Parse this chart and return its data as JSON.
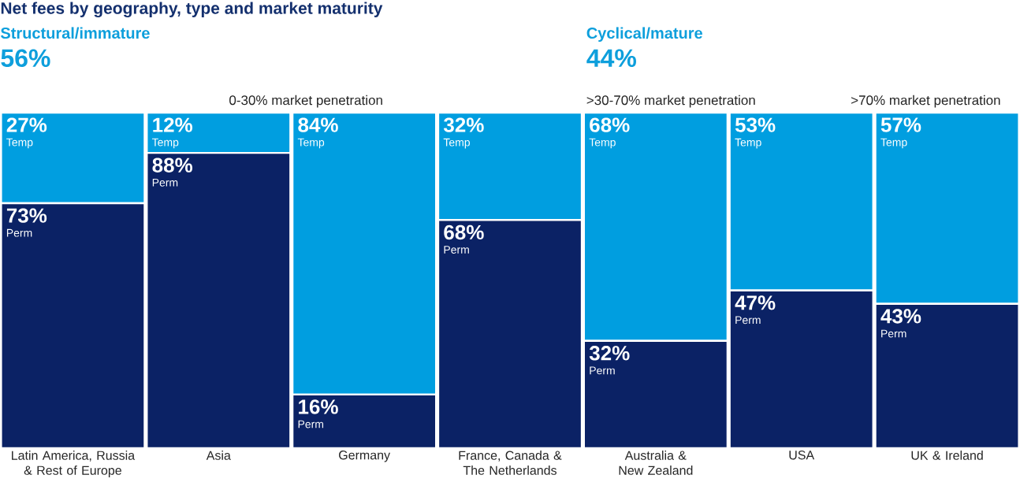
{
  "chart_data": {
    "type": "bar",
    "stacked": true,
    "tick_labels": "x",
    "title": "Net fees by geography, type and market maturity",
    "categories": [
      "Latin America, Russia & Rest of Europe",
      "Asia",
      "Germany",
      "France, Canada & The Netherlands",
      "Australia & New Zealand",
      "USA",
      "UK & Ireland"
    ],
    "series": [
      {
        "name": "Perm",
        "color": "#0b2265",
        "values": [
          73,
          88,
          16,
          68,
          32,
          47,
          43
        ],
        "value_labels": [
          "73%",
          "88%",
          "16%",
          "68%",
          "32%",
          "47%",
          "43%"
        ]
      },
      {
        "name": "Temp",
        "color": "#009ee0",
        "values": [
          27,
          12,
          84,
          32,
          68,
          53,
          57
        ],
        "value_labels": [
          "27%",
          "12%",
          "84%",
          "32%",
          "68%",
          "53%",
          "57%"
        ]
      }
    ],
    "annotations": [
      "Structural/immature",
      "56%",
      "Cyclical/mature",
      "44%",
      "0-30% market penetration",
      ">30-70% market penetration",
      ">70% market penetration"
    ]
  }
}
